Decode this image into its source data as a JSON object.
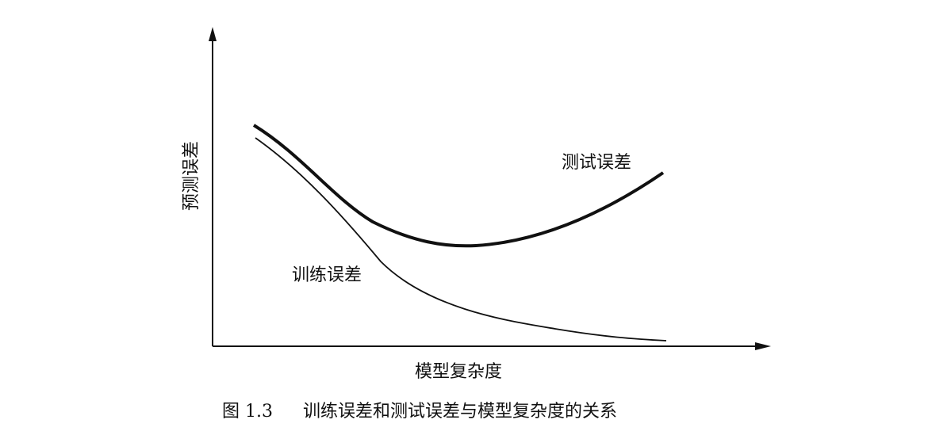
{
  "axes": {
    "y_label": "预测误差",
    "x_label": "模型复杂度"
  },
  "curves": {
    "test": {
      "label": "测试误差"
    },
    "train": {
      "label": "训练误差"
    }
  },
  "caption": {
    "number": "图 1.3",
    "text": "训练误差和测试误差与模型复杂度的关系"
  }
}
